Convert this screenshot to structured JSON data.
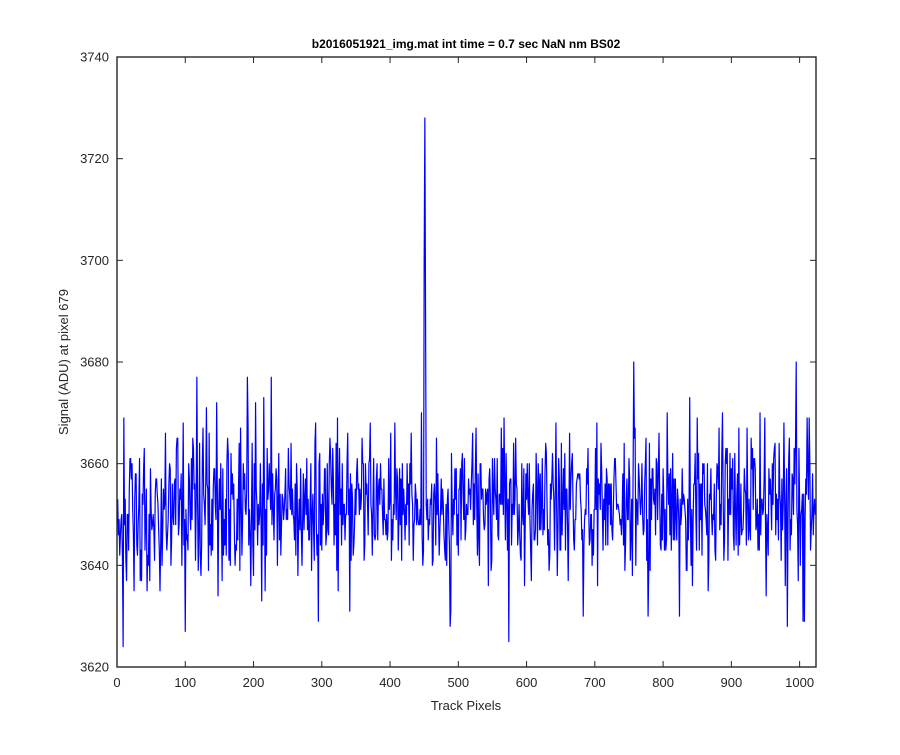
{
  "chart_data": {
    "type": "line",
    "title": "b2016051921_img.mat int time = 0.7 sec  NaN nm BS02",
    "xlabel": "Track Pixels",
    "ylabel": "Signal (ADU) at pixel 679",
    "xlim": [
      0,
      1024
    ],
    "ylim": [
      3620,
      3740
    ],
    "xticks": [
      0,
      100,
      200,
      300,
      400,
      500,
      600,
      700,
      800,
      900,
      1000
    ],
    "yticks": [
      3620,
      3640,
      3660,
      3680,
      3700,
      3720,
      3740
    ],
    "grid": false,
    "line_color": "#0000ff",
    "noise_model": {
      "n_points": 1024,
      "mean": 3651.5,
      "std": 7.0,
      "min": 3624,
      "max": 3680
    },
    "series": [
      {
        "anchors": [
          [
            1,
            3646
          ],
          [
            3,
            3642
          ],
          [
            5,
            3649
          ],
          [
            7,
            3641
          ],
          [
            8,
            3624
          ],
          [
            9,
            3669
          ],
          [
            10,
            3648
          ],
          [
            12,
            3641
          ],
          [
            20,
            3657
          ],
          [
            24,
            3635
          ],
          [
            32,
            3661
          ],
          [
            40,
            3643
          ],
          [
            48,
            3659
          ],
          [
            55,
            3654
          ],
          [
            62,
            3635
          ],
          [
            70,
            3666
          ],
          [
            78,
            3640
          ],
          [
            87,
            3665
          ],
          [
            94,
            3640
          ],
          [
            96,
            3668
          ],
          [
            99,
            3627
          ],
          [
            104,
            3660
          ],
          [
            112,
            3655
          ],
          [
            116,
            3677
          ],
          [
            121,
            3642
          ],
          [
            130,
            3671
          ],
          [
            137,
            3642
          ],
          [
            145,
            3672
          ],
          [
            153,
            3637
          ],
          [
            160,
            3660
          ],
          [
            172,
            3640
          ],
          [
            180,
            3667
          ],
          [
            190,
            3677
          ],
          [
            196,
            3650
          ],
          [
            202,
            3672
          ],
          [
            207,
            3648
          ],
          [
            214,
            3673
          ],
          [
            219,
            3663
          ],
          [
            225,
            3677
          ],
          [
            240,
            3648
          ],
          [
            262,
            3660
          ],
          [
            289,
            3664
          ],
          [
            294,
            3629
          ],
          [
            300,
            3654
          ],
          [
            317,
            3644
          ],
          [
            320,
            3664
          ],
          [
            338,
            3650
          ],
          [
            345,
            3642
          ],
          [
            359,
            3660
          ],
          [
            370,
            3668
          ],
          [
            381,
            3645
          ],
          [
            393,
            3646
          ],
          [
            404,
            3652
          ],
          [
            418,
            3650
          ],
          [
            436,
            3656
          ],
          [
            441,
            3648
          ],
          [
            447,
            3640
          ],
          [
            449,
            3700
          ],
          [
            450,
            3728
          ],
          [
            451,
            3690
          ],
          [
            452,
            3652
          ],
          [
            455,
            3645
          ],
          [
            470,
            3650
          ],
          [
            487,
            3628
          ],
          [
            490,
            3652
          ],
          [
            512,
            3650
          ],
          [
            530,
            3640
          ],
          [
            550,
            3654
          ],
          [
            583,
            3665
          ],
          [
            608,
            3654
          ],
          [
            616,
            3660
          ],
          [
            633,
            3642
          ],
          [
            650,
            3664
          ],
          [
            668,
            3645
          ],
          [
            686,
            3650
          ],
          [
            702,
            3668
          ],
          [
            714,
            3656
          ],
          [
            729,
            3661
          ],
          [
            741,
            3644
          ],
          [
            756,
            3680
          ],
          [
            769,
            3650
          ],
          [
            783,
            3659
          ],
          [
            809,
            3646
          ],
          [
            820,
            3655
          ],
          [
            823,
            3630
          ],
          [
            826,
            3650
          ],
          [
            830,
            3653
          ],
          [
            848,
            3643
          ],
          [
            853,
            3656
          ],
          [
            872,
            3650
          ],
          [
            890,
            3660
          ],
          [
            903,
            3643
          ],
          [
            925,
            3653
          ],
          [
            935,
            3647
          ],
          [
            941,
            3670
          ],
          [
            950,
            3634
          ],
          [
            959,
            3660
          ],
          [
            985,
            3643
          ],
          [
            994,
            3680
          ],
          [
            1000,
            3640
          ],
          [
            1010,
            3669
          ],
          [
            1015,
            3643
          ],
          [
            1020,
            3651
          ]
        ]
      }
    ]
  }
}
